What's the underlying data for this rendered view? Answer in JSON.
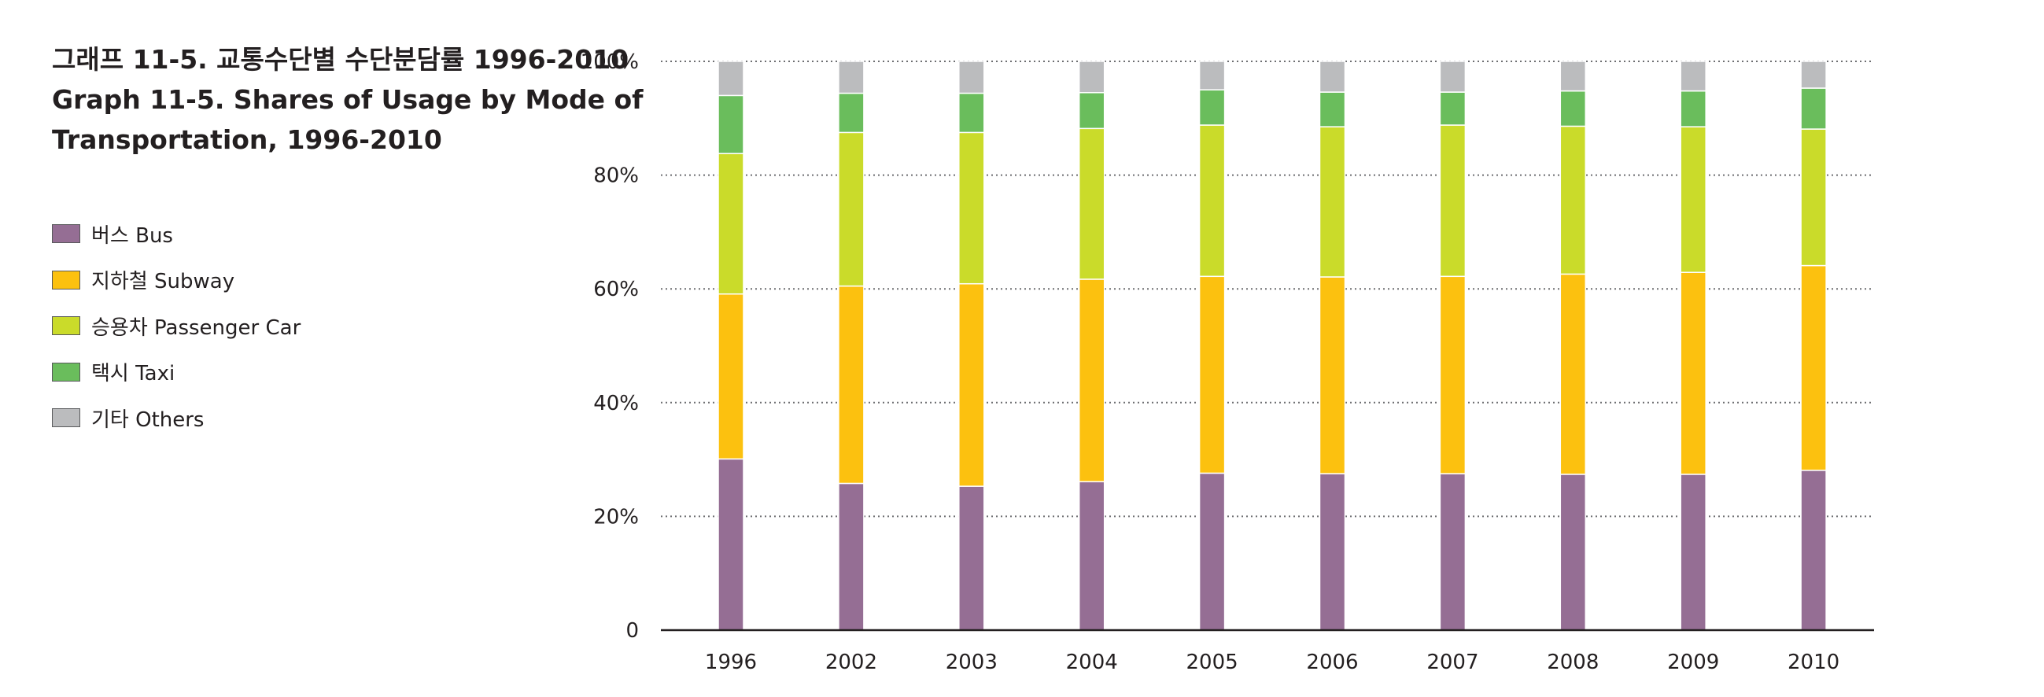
{
  "title": {
    "line1": "그래프 11-5. 교통수단별 수단분담률 1996-2010",
    "line2": "Graph 11-5. Shares of Usage by Mode of",
    "line3": "Transportation, 1996-2010"
  },
  "legend": [
    {
      "label": "버스  Bus",
      "color": "#956e94"
    },
    {
      "label": "지하철  Subway",
      "color": "#fcc10f"
    },
    {
      "label": "승용차  Passenger Car",
      "color": "#cadb2a"
    },
    {
      "label": "택시  Taxi",
      "color": "#6abd5c"
    },
    {
      "label": "기타  Others",
      "color": "#bbbcbe"
    }
  ],
  "chart_data": {
    "type": "bar",
    "stacked": true,
    "categories": [
      "1996",
      "2002",
      "2003",
      "2004",
      "2005",
      "2006",
      "2007",
      "2008",
      "2009",
      "2010"
    ],
    "series": [
      {
        "name": "버스  Bus",
        "color": "#956e94",
        "values": [
          30.1,
          25.8,
          25.3,
          26.1,
          27.6,
          27.5,
          27.5,
          27.4,
          27.4,
          28.1
        ]
      },
      {
        "name": "지하철  Subway",
        "color": "#fcc10f",
        "values": [
          29.0,
          34.7,
          35.6,
          35.6,
          34.6,
          34.6,
          34.7,
          35.2,
          35.5,
          36.0
        ]
      },
      {
        "name": "승용차  Passenger Car",
        "color": "#cadb2a",
        "values": [
          24.7,
          27.0,
          26.6,
          26.5,
          26.6,
          26.4,
          26.6,
          26.0,
          25.6,
          24.0
        ]
      },
      {
        "name": "택시  Taxi",
        "color": "#6abd5c",
        "values": [
          10.2,
          6.9,
          6.9,
          6.3,
          6.2,
          6.1,
          5.8,
          6.2,
          6.3,
          7.2
        ]
      },
      {
        "name": "기타  Others",
        "color": "#bbbcbe",
        "values": [
          6.0,
          5.6,
          5.6,
          5.5,
          5.0,
          5.4,
          5.4,
          5.2,
          5.2,
          4.7
        ]
      }
    ],
    "ylim": [
      0,
      100
    ],
    "yticks": [
      0,
      20,
      40,
      60,
      80,
      100
    ],
    "ytick_labels": [
      "0",
      "20%",
      "40%",
      "60%",
      "80%",
      "100%"
    ],
    "grid": "dotted horizontal",
    "legend_position": "left"
  }
}
